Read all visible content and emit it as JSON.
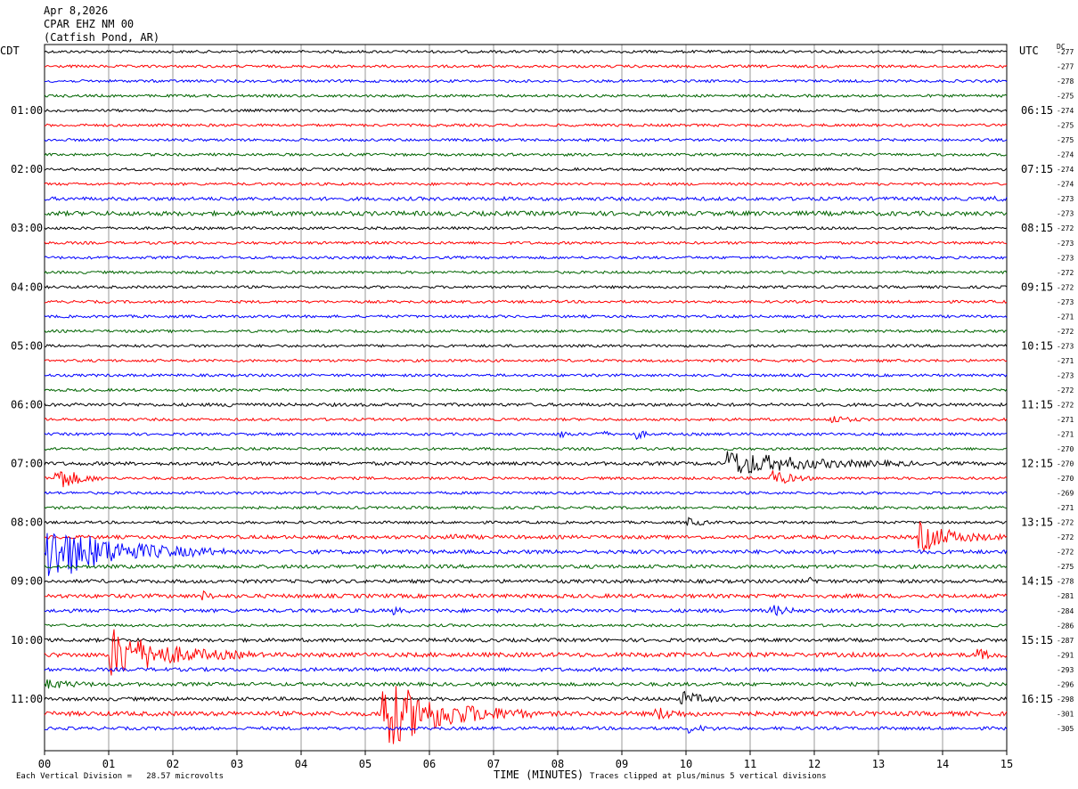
{
  "header": {
    "date": "Apr 8,2026",
    "station": "CPAR EHZ NM 00",
    "location": "(Catfish Pond, AR)",
    "left_tz": "CDT",
    "right_tz": "UTC",
    "dc_label": "DC"
  },
  "footer": {
    "scale_note": "Each Vertical Division =   28.57 microvolts",
    "xlabel": "TIME (MINUTES)",
    "clip_note": "Traces clipped at plus/minus 5 vertical divisions"
  },
  "colors": {
    "trace_cycle": [
      "#000000",
      "#ff0000",
      "#0000ff",
      "#006400"
    ],
    "grid": "#999999"
  },
  "chart_data": {
    "type": "line",
    "xlabel": "TIME (MINUTES)",
    "xlim": [
      0,
      15
    ],
    "x_ticks": [
      "00",
      "01",
      "02",
      "03",
      "04",
      "05",
      "06",
      "07",
      "08",
      "09",
      "10",
      "11",
      "12",
      "13",
      "14",
      "15"
    ],
    "traces_per_hour": 4,
    "minutes_per_trace": 15,
    "left_hour_labels": [
      "01:00",
      "02:00",
      "03:00",
      "04:00",
      "05:00",
      "06:00",
      "07:00",
      "08:00",
      "09:00",
      "10:00",
      "11:00"
    ],
    "right_hour_labels": [
      "06:15",
      "07:15",
      "08:15",
      "09:15",
      "10:15",
      "11:15",
      "12:15",
      "13:15",
      "14:15",
      "15:15",
      "16:15"
    ],
    "dc_offsets": [
      "-277",
      "-277",
      "-278",
      "-275",
      "-274",
      "-275",
      "-275",
      "-274",
      "-274",
      "-274",
      "-273",
      "-273",
      "-272",
      "-273",
      "-273",
      "-272",
      "-272",
      "-273",
      "-271",
      "-272",
      "-273",
      "-271",
      "-273",
      "-272",
      "-272",
      "-271",
      "-271",
      "-270",
      "-270",
      "-270",
      "-269",
      "-271",
      "-272",
      "-272",
      "-272",
      "-275",
      "-278",
      "-281",
      "-284",
      "-286",
      "-287",
      "-291",
      "-293",
      "-296",
      "-298",
      "-301",
      "-305"
    ],
    "noise_levels": [
      1.5,
      1.5,
      1.5,
      1.5,
      1.5,
      1.5,
      1.5,
      1.5,
      1.5,
      1.5,
      2,
      2.5,
      1.5,
      1.5,
      1.5,
      1.5,
      1.5,
      1.5,
      1.5,
      1.5,
      1.5,
      1.5,
      1.5,
      1.5,
      1.8,
      1.5,
      1.5,
      1.5,
      2,
      1.5,
      1.5,
      1.5,
      1.5,
      2,
      2.2,
      2,
      2,
      2.2,
      2,
      1.5,
      2,
      2.5,
      2,
      2,
      2,
      2.5,
      1.8
    ],
    "events": [
      {
        "trace": 10,
        "minute": 14.8,
        "duration": 0.3,
        "amplitude": 4
      },
      {
        "trace": 24,
        "minute": 2.85,
        "duration": 0.3,
        "amplitude": 5
      },
      {
        "trace": 25,
        "minute": 12.2,
        "duration": 0.6,
        "amplitude": 6
      },
      {
        "trace": 26,
        "minute": 8.0,
        "duration": 0.25,
        "amplitude": 8
      },
      {
        "trace": 26,
        "minute": 8.6,
        "duration": 0.25,
        "amplitude": 10
      },
      {
        "trace": 26,
        "minute": 9.2,
        "duration": 0.25,
        "amplitude": 10
      },
      {
        "trace": 28,
        "minute": 10.6,
        "duration": 3.0,
        "amplitude": 15
      },
      {
        "trace": 29,
        "minute": 0.15,
        "duration": 0.8,
        "amplitude": 18
      },
      {
        "trace": 29,
        "minute": 11.3,
        "duration": 0.7,
        "amplitude": 12
      },
      {
        "trace": 32,
        "minute": 10.0,
        "duration": 0.5,
        "amplitude": 6
      },
      {
        "trace": 33,
        "minute": 6.3,
        "duration": 0.5,
        "amplitude": 5
      },
      {
        "trace": 33,
        "minute": 13.6,
        "duration": 1.4,
        "amplitude": 18
      },
      {
        "trace": 34,
        "minute": 0.0,
        "duration": 2.8,
        "amplitude": 35
      },
      {
        "trace": 36,
        "minute": 11.9,
        "duration": 0.3,
        "amplitude": 4
      },
      {
        "trace": 37,
        "minute": 2.4,
        "duration": 0.3,
        "amplitude": 8
      },
      {
        "trace": 38,
        "minute": 5.4,
        "duration": 0.3,
        "amplitude": 5
      },
      {
        "trace": 38,
        "minute": 11.3,
        "duration": 0.6,
        "amplitude": 7
      },
      {
        "trace": 41,
        "minute": 14.5,
        "duration": 0.5,
        "amplitude": 7
      },
      {
        "trace": 41,
        "minute": 1.0,
        "duration": 2.2,
        "amplitude": 30
      },
      {
        "trace": 43,
        "minute": 0.0,
        "duration": 1.0,
        "amplitude": 5
      },
      {
        "trace": 44,
        "minute": 9.9,
        "duration": 0.8,
        "amplitude": 9
      },
      {
        "trace": 45,
        "minute": 5.2,
        "duration": 2.4,
        "amplitude": 45
      },
      {
        "trace": 45,
        "minute": 9.5,
        "duration": 0.7,
        "amplitude": 8
      },
      {
        "trace": 46,
        "minute": 10.0,
        "duration": 0.6,
        "amplitude": 5
      }
    ]
  }
}
